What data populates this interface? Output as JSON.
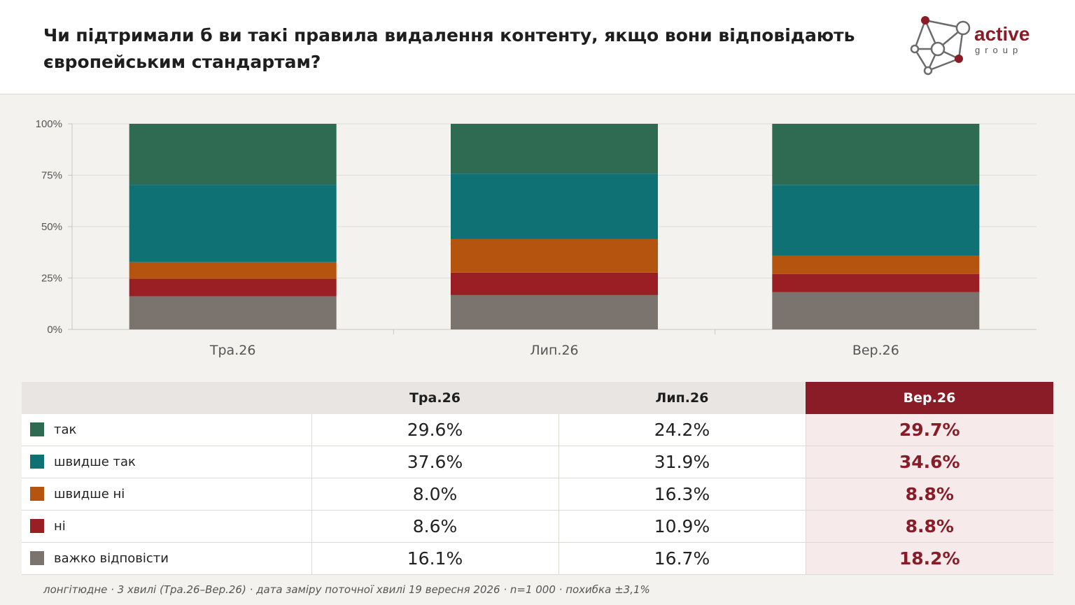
{
  "header": {
    "title": "Чи підтримали б ви такі правила видалення контенту, якщо вони відповідають європейським стандартам?",
    "logo": {
      "word": "active",
      "sub": "group"
    }
  },
  "colors": {
    "так": "#2e6b52",
    "швидше так": "#0f7174",
    "швидше ні": "#b5540f",
    "ні": "#991f24",
    "важко відповісти": "#7b736e",
    "highlight": "#8a1c27"
  },
  "chart_data": {
    "type": "bar",
    "stacked": true,
    "categories": [
      "Тра.26",
      "Лип.26",
      "Вер.26"
    ],
    "yticks": [
      "100%",
      "75%",
      "50%",
      "25%",
      "0%"
    ],
    "ylim": [
      0,
      100
    ],
    "grid": true,
    "series": [
      {
        "name": "важко відповісти",
        "values": [
          16.1,
          16.7,
          18.2
        ]
      },
      {
        "name": "ні",
        "values": [
          8.6,
          10.9,
          8.8
        ]
      },
      {
        "name": "швидше ні",
        "values": [
          8.0,
          16.3,
          8.8
        ]
      },
      {
        "name": "швидше так",
        "values": [
          37.6,
          31.9,
          34.6
        ]
      },
      {
        "name": "так",
        "values": [
          29.6,
          24.2,
          29.7
        ]
      }
    ]
  },
  "table": {
    "columns": [
      "Тра.26",
      "Лип.26",
      "Вер.26"
    ],
    "rows": [
      {
        "label": "так",
        "values": [
          "29.6%",
          "24.2%",
          "29.7%"
        ]
      },
      {
        "label": "швидше так",
        "values": [
          "37.6%",
          "31.9%",
          "34.6%"
        ]
      },
      {
        "label": "швидше ні",
        "values": [
          "8.0%",
          "16.3%",
          "8.8%"
        ]
      },
      {
        "label": "ні",
        "values": [
          "8.6%",
          "10.9%",
          "8.8%"
        ]
      },
      {
        "label": "важко відповісти",
        "values": [
          "16.1%",
          "16.7%",
          "18.2%"
        ]
      }
    ]
  },
  "footnote": "лонгітюдне · 3 хвилі (Тра.26–Вер.26) · дата заміру поточної хвилі 19 вересня 2026 · n=1 000 · похибка ±3,1%"
}
